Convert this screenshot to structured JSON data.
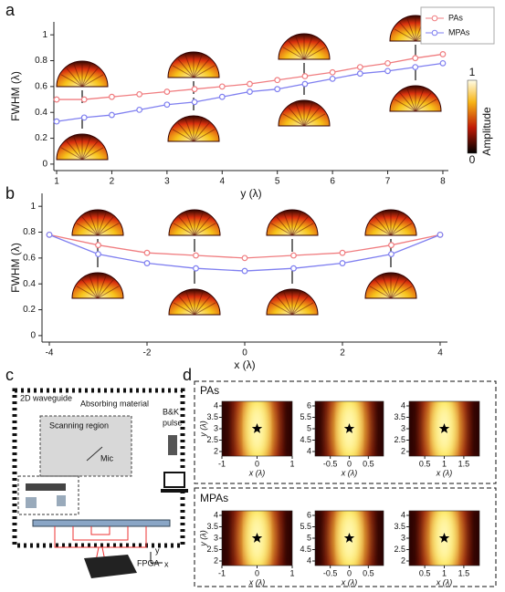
{
  "panel_labels": [
    "a",
    "b",
    "c",
    "d"
  ],
  "chart_data": [
    {
      "type": "line",
      "xlabel": "y (λ)",
      "ylabel": "FWHM (λ)",
      "x": [
        1,
        1.5,
        2,
        2.5,
        3,
        3.5,
        4,
        4.5,
        5,
        5.5,
        6,
        6.5,
        7,
        7.5,
        8
      ],
      "series": [
        {
          "name": "PAs",
          "color": "#f07d80",
          "values": [
            0.5,
            0.5,
            0.52,
            0.54,
            0.56,
            0.58,
            0.6,
            0.62,
            0.65,
            0.68,
            0.71,
            0.75,
            0.78,
            0.82,
            0.85
          ]
        },
        {
          "name": "MPAs",
          "color": "#7f7ff0",
          "values": [
            0.33,
            0.36,
            0.38,
            0.42,
            0.46,
            0.48,
            0.52,
            0.56,
            0.58,
            0.62,
            0.66,
            0.7,
            0.72,
            0.75,
            0.78
          ]
        }
      ],
      "xlim": [
        0.95,
        8.1
      ],
      "ylim": [
        -0.05,
        1.1
      ],
      "xticks": [
        1,
        2,
        3,
        4,
        5,
        6,
        7,
        8
      ],
      "yticks": [
        0,
        0.2,
        0.4,
        0.6,
        0.8,
        1
      ],
      "legend": "upper right",
      "colorbar": {
        "label": "Amplitude",
        "ticks": [
          0,
          1
        ]
      }
    },
    {
      "type": "line",
      "xlabel": "x (λ)",
      "ylabel": "FWHM (λ)",
      "x": [
        -4,
        -3,
        -2,
        -1,
        0,
        1,
        2,
        3,
        4
      ],
      "series": [
        {
          "name": "PAs",
          "color": "#f07d80",
          "values": [
            0.78,
            0.7,
            0.64,
            0.62,
            0.6,
            0.62,
            0.64,
            0.7,
            0.78
          ]
        },
        {
          "name": "MPAs",
          "color": "#7f7ff0",
          "values": [
            0.78,
            0.63,
            0.56,
            0.52,
            0.5,
            0.52,
            0.56,
            0.63,
            0.78
          ]
        }
      ],
      "xlim": [
        -4.15,
        4.15
      ],
      "ylim": [
        -0.05,
        1.1
      ],
      "xticks": [
        -4,
        -2,
        0,
        2,
        4
      ],
      "yticks": [
        0,
        0.2,
        0.4,
        0.6,
        0.8,
        1
      ]
    },
    {
      "type": "heatmap",
      "xlabel": "x (λ)",
      "ylabel": "y (λ)",
      "xlim": [
        -1,
        1
      ],
      "ylim": [
        1.8,
        4.2
      ],
      "xticks": [
        -1,
        0,
        1
      ],
      "yticks": [
        2,
        2.5,
        3,
        3.5,
        4
      ],
      "marker": {
        "x": 0,
        "y": 3
      }
    },
    {
      "type": "heatmap",
      "xlabel": "x (λ)",
      "xlim": [
        -0.9,
        0.9
      ],
      "ylim": [
        3.8,
        6.2
      ],
      "xticks": [
        -0.5,
        0,
        0.5
      ],
      "yticks": [
        4,
        4.5,
        5,
        5.5,
        6
      ],
      "marker": {
        "x": 0,
        "y": 5
      }
    },
    {
      "type": "heatmap",
      "xlabel": "x (λ)",
      "xlim": [
        0.1,
        1.9
      ],
      "ylim": [
        1.8,
        4.2
      ],
      "xticks": [
        0.5,
        1,
        1.5
      ],
      "yticks": [
        2,
        2.5,
        3,
        3.5,
        4
      ],
      "marker": {
        "x": 1,
        "y": 3
      }
    },
    {
      "type": "heatmap",
      "xlabel": "x (λ)",
      "ylabel": "y (λ)",
      "xlim": [
        -1,
        1
      ],
      "ylim": [
        1.8,
        4.2
      ],
      "xticks": [
        -1,
        0,
        1
      ],
      "yticks": [
        2,
        2.5,
        3,
        3.5,
        4
      ],
      "marker": {
        "x": 0,
        "y": 3
      }
    },
    {
      "type": "heatmap",
      "xlabel": "x (λ)",
      "xlim": [
        -0.9,
        0.9
      ],
      "ylim": [
        3.8,
        6.2
      ],
      "xticks": [
        -0.5,
        0,
        0.5
      ],
      "yticks": [
        4,
        4.5,
        5,
        5.5,
        6
      ],
      "marker": {
        "x": 0,
        "y": 5
      }
    },
    {
      "type": "heatmap",
      "xlabel": "x (λ)",
      "xlim": [
        0.1,
        1.9
      ],
      "ylim": [
        1.8,
        4.2
      ],
      "xticks": [
        0.5,
        1,
        1.5
      ],
      "yticks": [
        2,
        2.5,
        3,
        3.5,
        4
      ],
      "marker": {
        "x": 1,
        "y": 3
      }
    }
  ],
  "panel_d": {
    "rows": [
      "PAs",
      "MPAs"
    ]
  },
  "diagram": {
    "waveguide": "2D waveguide",
    "absorber": "Absorbing material",
    "region": "Scanning region",
    "mic": "Mic",
    "source": [
      "B&K",
      "pulse"
    ],
    "fpga": "FPGA",
    "axis_y": "y",
    "axis_x": "x"
  }
}
